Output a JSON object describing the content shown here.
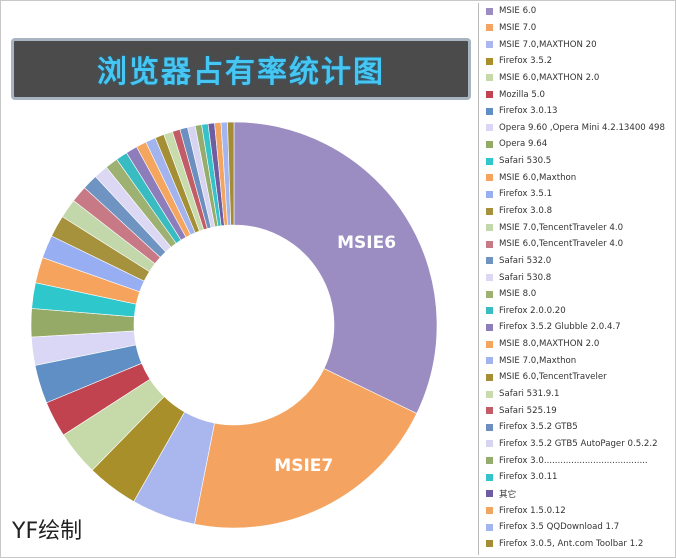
{
  "title": "浏览器占有率统计图",
  "watermark": "YF绘制",
  "chart_data": {
    "type": "pie",
    "style": "donut",
    "title": "浏览器占有率统计图",
    "slices": [
      {
        "label": "MSIE 6.0",
        "value": 31.5,
        "color": "#9b8cc2",
        "display": "MSIE6"
      },
      {
        "label": "MSIE 7.0",
        "value": 20.5,
        "color": "#f4a460",
        "display": "MSIE7"
      },
      {
        "label": "MSIE 7.0,MAXTHON 20",
        "value": 5.0,
        "color": "#aab7ef"
      },
      {
        "label": "Firefox 3.5.2",
        "value": 4.0,
        "color": "#a88f2a"
      },
      {
        "label": "MSIE 6.0,MAXTHON 2.0",
        "value": 3.5,
        "color": "#c6d9a9"
      },
      {
        "label": "Mozilla 5.0",
        "value": 2.8,
        "color": "#c0434f"
      },
      {
        "label": "Firefox 3.0.13",
        "value": 3.0,
        "color": "#5f8fc4"
      },
      {
        "label": "Opera 9.60 ,Opera Mini 4.2.13400 498",
        "value": 2.2,
        "color": "#dad6f5"
      },
      {
        "label": "Opera 9.64",
        "value": 2.2,
        "color": "#94aa66"
      },
      {
        "label": "Safari 530.5",
        "value": 2.0,
        "color": "#2ec7cc"
      },
      {
        "label": "MSIE 6.0,Maxthon",
        "value": 2.0,
        "color": "#f5a35d"
      },
      {
        "label": "Firefox 3.5.1",
        "value": 1.8,
        "color": "#98aef2"
      },
      {
        "label": "Firefox 3.0.8",
        "value": 1.7,
        "color": "#a6913d"
      },
      {
        "label": "MSIE 7.0,TencentTraveler 4.0",
        "value": 1.5,
        "color": "#c2d8ab"
      },
      {
        "label": "MSIE 6.0,TencentTraveler 4.0",
        "value": 1.3,
        "color": "#c77a86"
      },
      {
        "label": "Safari 532.0",
        "value": 1.2,
        "color": "#6f94c2"
      },
      {
        "label": "Safari 530.8",
        "value": 1.1,
        "color": "#dcd8f4"
      },
      {
        "label": "MSIE 8.0",
        "value": 1.0,
        "color": "#9db172"
      },
      {
        "label": "Firefox 2.0.0.20",
        "value": 0.9,
        "color": "#38bcc2"
      },
      {
        "label": "Firefox 3.5.2 Glubble 2.0.4.7",
        "value": 0.9,
        "color": "#8e7dbb"
      },
      {
        "label": "MSIE 8.0,MAXTHON 2.0",
        "value": 0.8,
        "color": "#f4a55e"
      },
      {
        "label": "MSIE 7.0,Maxthon",
        "value": 0.8,
        "color": "#a3b3ee"
      },
      {
        "label": "MSIE 6.0,TencentTraveler",
        "value": 0.7,
        "color": "#a48f34"
      },
      {
        "label": "Safari 531.9.1",
        "value": 0.7,
        "color": "#c7dbad"
      },
      {
        "label": "Safari 525.19",
        "value": 0.6,
        "color": "#c25c67"
      },
      {
        "label": "Firefox 3.5.2 GTB5",
        "value": 0.6,
        "color": "#6d8fbf"
      },
      {
        "label": "Firefox 3.5.2 GTB5 AutoPager 0.5.2.2",
        "value": 0.6,
        "color": "#d7d4f1"
      },
      {
        "label": "Firefox   3.0......................................",
        "value": 0.5,
        "color": "#96ac6c"
      },
      {
        "label": "Firefox 3.0.11",
        "value": 0.5,
        "color": "#35c2c8"
      },
      {
        "label": "其它",
        "value": 0.5,
        "color": "#6e5da3"
      },
      {
        "label": "Firefox 1.5.0.12",
        "value": 0.5,
        "color": "#f2a561"
      },
      {
        "label": "Firefox 3.5 QQDownload 1.7",
        "value": 0.5,
        "color": "#a2b5f0"
      },
      {
        "label": "Firefox 3.0.5, Ant.com Toolbar 1.2",
        "value": 0.5,
        "color": "#a38c35"
      }
    ]
  }
}
